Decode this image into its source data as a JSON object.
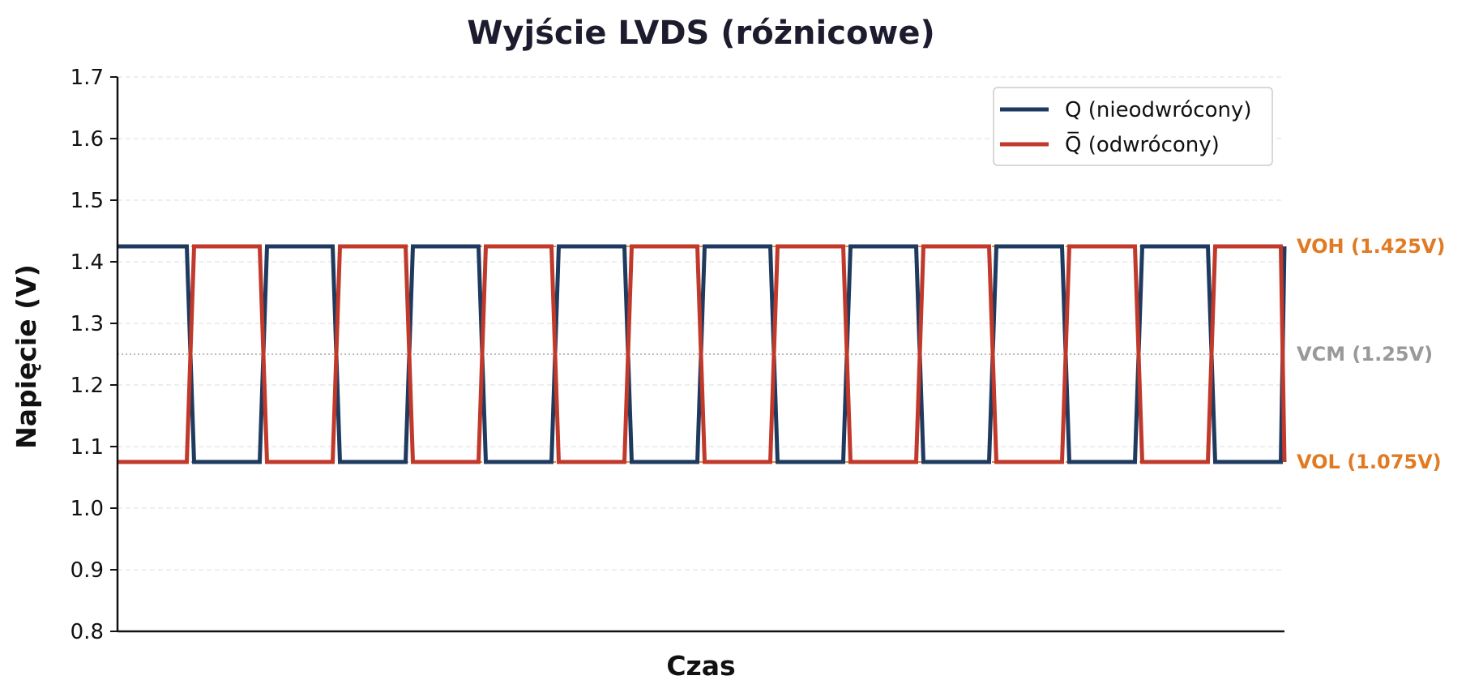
{
  "chart_data": {
    "type": "line",
    "title": "Wyjście LVDS (różnicowe)",
    "xlabel": "Czas",
    "ylabel": "Napięcie (V)",
    "ylim": [
      0.8,
      1.7
    ],
    "yticks": [
      "0.8",
      "0.9",
      "1.0",
      "1.1",
      "1.2",
      "1.3",
      "1.4",
      "1.5",
      "1.6",
      "1.7"
    ],
    "grid": "horizontal-dashed",
    "legend_position": "top-right",
    "x_range": [
      0,
      16
    ],
    "bit_period": 1,
    "edge_fraction": 0.1,
    "series": [
      {
        "name": "Q (nieodwrócony)",
        "color": "#1f3a5f",
        "levels": [
          1.425,
          1.075,
          1.425,
          1.075,
          1.425,
          1.075,
          1.425,
          1.075,
          1.425,
          1.075,
          1.425,
          1.075,
          1.425,
          1.075,
          1.425,
          1.075
        ]
      },
      {
        "name": "Q̅ (odwrócony)",
        "color": "#c0392b",
        "levels": [
          1.075,
          1.425,
          1.075,
          1.425,
          1.075,
          1.425,
          1.075,
          1.425,
          1.075,
          1.425,
          1.075,
          1.425,
          1.075,
          1.425,
          1.075,
          1.425
        ]
      }
    ],
    "reference_lines": [
      {
        "label": "VOH (1.425V)",
        "value": 1.425,
        "color": "#e07b24",
        "style": "dashed"
      },
      {
        "label": "VCM (1.25V)",
        "value": 1.25,
        "color": "#999999",
        "style": "dotted"
      },
      {
        "label": "VOL (1.075V)",
        "value": 1.075,
        "color": "#e07b24",
        "style": "dashed"
      }
    ]
  }
}
